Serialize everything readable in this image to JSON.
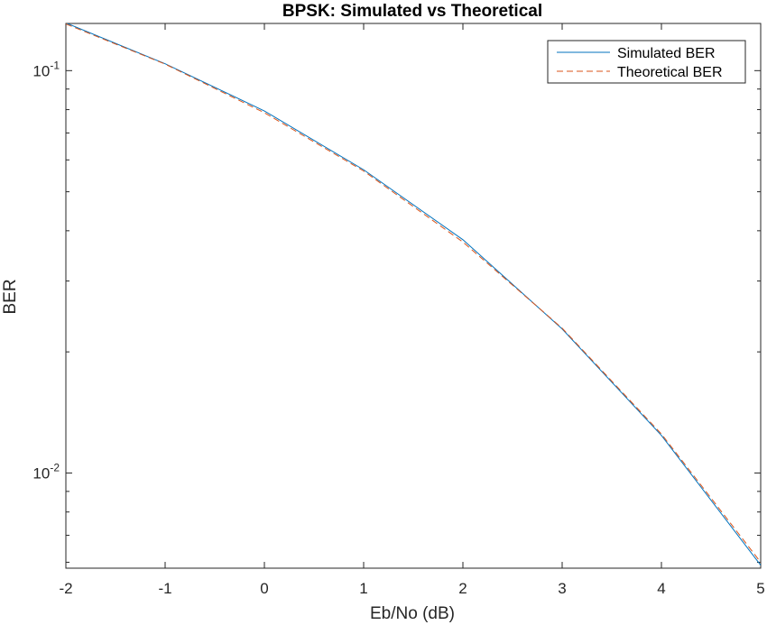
{
  "chart_data": {
    "type": "line",
    "title": "BPSK: Simulated vs Theoretical",
    "xlabel": "Eb/No (dB)",
    "ylabel": "BER",
    "xlim": [
      -2,
      5
    ],
    "ylim": [
      0.0058,
      0.131
    ],
    "yscale": "log",
    "grid": false,
    "legend_position": "top-right",
    "x": [
      -2,
      -1,
      0,
      1,
      2,
      3,
      4,
      5
    ],
    "x_tick_labels": [
      "-2",
      "-1",
      "0",
      "1",
      "2",
      "3",
      "4",
      "5"
    ],
    "y_ticks": [
      {
        "value": 0.1,
        "base": "10",
        "exp": "-1"
      },
      {
        "value": 0.01,
        "base": "10",
        "exp": "-2"
      }
    ],
    "series": [
      {
        "name": "Simulated BER",
        "color": "#0072BD",
        "style": "solid",
        "values": [
          0.1314,
          0.104,
          0.0794,
          0.0567,
          0.038,
          0.0228,
          0.0124,
          0.0059
        ]
      },
      {
        "name": "Theoretical BER",
        "color": "#D95319",
        "style": "dashed",
        "values": [
          0.1306,
          0.1038,
          0.0786,
          0.0563,
          0.0375,
          0.0229,
          0.0125,
          0.006
        ]
      }
    ]
  }
}
